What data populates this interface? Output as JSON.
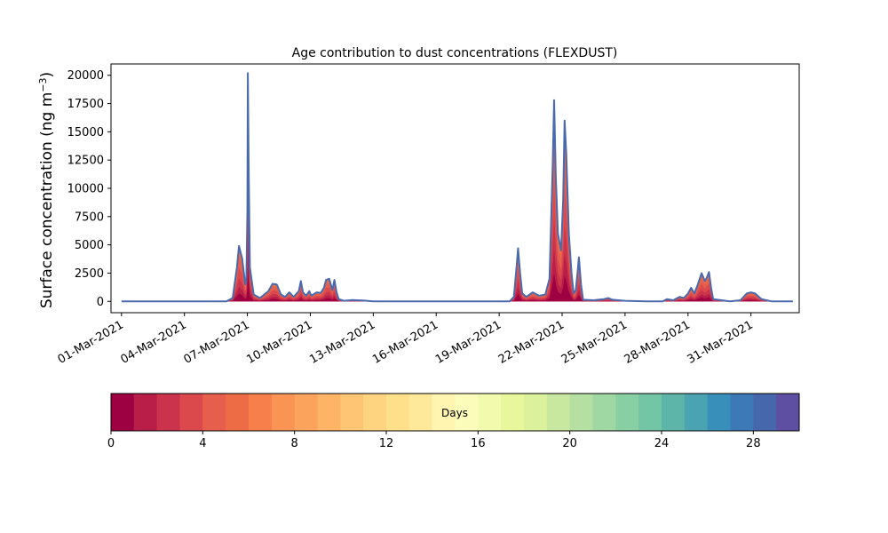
{
  "chart_data": {
    "type": "area",
    "title": "Age contribution to dust concentrations (FLEXDUST)",
    "ylabel": "Surface concentration (ng m⁻³)",
    "xlabel": "",
    "ylim": [
      -1000,
      21000
    ],
    "yticks": [
      0,
      2500,
      5000,
      7500,
      10000,
      12500,
      15000,
      17500,
      20000
    ],
    "xlim_days": [
      -0.5,
      32.3
    ],
    "xticks": [
      {
        "day": 0,
        "label": "01-Mar-2021"
      },
      {
        "day": 3,
        "label": "04-Mar-2021"
      },
      {
        "day": 6,
        "label": "07-Mar-2021"
      },
      {
        "day": 9,
        "label": "10-Mar-2021"
      },
      {
        "day": 12,
        "label": "13-Mar-2021"
      },
      {
        "day": 15,
        "label": "16-Mar-2021"
      },
      {
        "day": 18,
        "label": "19-Mar-2021"
      },
      {
        "day": 21,
        "label": "22-Mar-2021"
      },
      {
        "day": 24,
        "label": "25-Mar-2021"
      },
      {
        "day": 27,
        "label": "28-Mar-2021"
      },
      {
        "day": 30,
        "label": "31-Mar-2021"
      }
    ],
    "total": [
      [
        0,
        0
      ],
      [
        5.0,
        0
      ],
      [
        5.3,
        300
      ],
      [
        5.5,
        3000
      ],
      [
        5.6,
        4900
      ],
      [
        5.75,
        3800
      ],
      [
        5.9,
        1500
      ],
      [
        5.95,
        1800
      ],
      [
        6.0,
        8000
      ],
      [
        6.02,
        20200
      ],
      [
        6.06,
        12000
      ],
      [
        6.12,
        3000
      ],
      [
        6.3,
        600
      ],
      [
        6.6,
        300
      ],
      [
        7.0,
        900
      ],
      [
        7.2,
        1550
      ],
      [
        7.4,
        1500
      ],
      [
        7.6,
        600
      ],
      [
        7.8,
        400
      ],
      [
        8.0,
        800
      ],
      [
        8.2,
        400
      ],
      [
        8.45,
        900
      ],
      [
        8.55,
        1800
      ],
      [
        8.65,
        800
      ],
      [
        8.8,
        500
      ],
      [
        8.95,
        900
      ],
      [
        9.05,
        500
      ],
      [
        9.3,
        800
      ],
      [
        9.5,
        750
      ],
      [
        9.65,
        1200
      ],
      [
        9.75,
        1900
      ],
      [
        9.9,
        2000
      ],
      [
        10.05,
        1000
      ],
      [
        10.15,
        1900
      ],
      [
        10.25,
        800
      ],
      [
        10.35,
        200
      ],
      [
        10.6,
        50
      ],
      [
        11.0,
        120
      ],
      [
        11.5,
        80
      ],
      [
        12.0,
        0
      ],
      [
        18.0,
        0
      ],
      [
        18.5,
        0
      ],
      [
        18.7,
        400
      ],
      [
        18.85,
        3500
      ],
      [
        18.9,
        4700
      ],
      [
        19.0,
        2500
      ],
      [
        19.1,
        700
      ],
      [
        19.3,
        400
      ],
      [
        19.6,
        800
      ],
      [
        19.9,
        500
      ],
      [
        20.2,
        600
      ],
      [
        20.4,
        2000
      ],
      [
        20.55,
        12000
      ],
      [
        20.62,
        17800
      ],
      [
        20.7,
        11000
      ],
      [
        20.8,
        6000
      ],
      [
        20.95,
        4500
      ],
      [
        21.05,
        9000
      ],
      [
        21.12,
        16000
      ],
      [
        21.2,
        13000
      ],
      [
        21.32,
        6000
      ],
      [
        21.45,
        2500
      ],
      [
        21.55,
        700
      ],
      [
        21.65,
        1000
      ],
      [
        21.75,
        2800
      ],
      [
        21.8,
        3900
      ],
      [
        21.9,
        1500
      ],
      [
        22.0,
        150
      ],
      [
        22.5,
        100
      ],
      [
        23.0,
        200
      ],
      [
        23.2,
        300
      ],
      [
        23.4,
        150
      ],
      [
        24.0,
        50
      ],
      [
        25.0,
        0
      ],
      [
        25.8,
        0
      ],
      [
        26.0,
        200
      ],
      [
        26.3,
        100
      ],
      [
        26.6,
        400
      ],
      [
        26.8,
        300
      ],
      [
        27.0,
        700
      ],
      [
        27.15,
        1200
      ],
      [
        27.3,
        700
      ],
      [
        27.45,
        1400
      ],
      [
        27.65,
        2500
      ],
      [
        27.8,
        1800
      ],
      [
        27.9,
        2100
      ],
      [
        28.0,
        2600
      ],
      [
        28.1,
        1200
      ],
      [
        28.2,
        200
      ],
      [
        29.0,
        0
      ],
      [
        29.5,
        100
      ],
      [
        29.8,
        700
      ],
      [
        30.0,
        800
      ],
      [
        30.2,
        700
      ],
      [
        30.5,
        200
      ],
      [
        31.0,
        0
      ],
      [
        31.0,
        0
      ],
      [
        32.0,
        0
      ]
    ],
    "colorbar": {
      "label": "Days",
      "min": 0,
      "max": 30,
      "ticks": [
        0,
        4,
        8,
        12,
        16,
        20,
        24,
        28
      ],
      "colors": [
        "#9e0142",
        "#b81e48",
        "#cb334c",
        "#dc494c",
        "#e65e4c",
        "#ee6c45",
        "#f67f4b",
        "#f99455",
        "#fba35c",
        "#fdb466",
        "#fec574",
        "#fed481",
        "#fee08b",
        "#fee99a",
        "#fff4b0",
        "#fbfcb9",
        "#f2faad",
        "#e8f69c",
        "#dbf19b",
        "#c8e8a0",
        "#b5e0a2",
        "#a0d8a3",
        "#88cfa4",
        "#72c5a5",
        "#5db5a9",
        "#4aa3b1",
        "#388fb9",
        "#3d79b7",
        "#4767ad",
        "#5e4fa2"
      ]
    },
    "outline_color": "#4a6aad"
  }
}
